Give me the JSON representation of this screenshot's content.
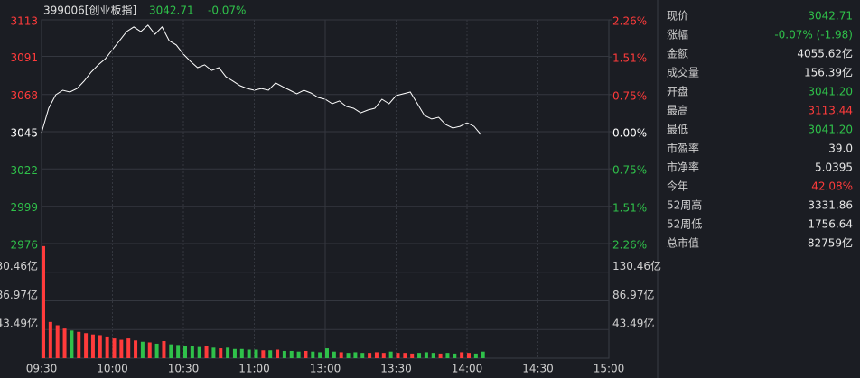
{
  "header": {
    "code": "399006[创业板指]",
    "price": "3042.71",
    "change": "-0.07%"
  },
  "chart_data": [
    {
      "type": "line",
      "color": "#ffffff",
      "xlim": [
        0,
        240
      ],
      "x": [
        0,
        3,
        6,
        9,
        12,
        15,
        18,
        21,
        24,
        27,
        30,
        33,
        36,
        39,
        42,
        45,
        48,
        51,
        54,
        57,
        60,
        63,
        66,
        69,
        72,
        75,
        78,
        81,
        84,
        87,
        90,
        93,
        96,
        99,
        102,
        105,
        108,
        111,
        114,
        117,
        120,
        123,
        126,
        129,
        132,
        135,
        138,
        141,
        144,
        147,
        150,
        153,
        156,
        159,
        162,
        165,
        168,
        171,
        174,
        177,
        180,
        183,
        186
      ],
      "values": [
        3044.1,
        3059.1,
        3067.4,
        3070.2,
        3069.1,
        3071.3,
        3075.8,
        3081.3,
        3085.8,
        3089.6,
        3095.2,
        3100.7,
        3106.3,
        3109.1,
        3106.3,
        3110.2,
        3104.6,
        3109.1,
        3100.7,
        3098.0,
        3092.4,
        3088.0,
        3084.1,
        3085.8,
        3082.4,
        3084.1,
        3078.5,
        3075.8,
        3073.0,
        3071.3,
        3070.2,
        3071.3,
        3070.2,
        3074.7,
        3072.4,
        3070.2,
        3068.0,
        3070.2,
        3068.5,
        3065.8,
        3064.7,
        3061.9,
        3063.6,
        3060.2,
        3059.1,
        3056.3,
        3058.0,
        3059.1,
        3064.7,
        3061.9,
        3066.9,
        3068.0,
        3069.1,
        3061.9,
        3054.7,
        3052.5,
        3053.6,
        3049.1,
        3046.9,
        3048.0,
        3050.2,
        3048.0,
        3042.7
      ],
      "ylim": [
        2975.9,
        3113.5
      ],
      "yticks": [
        {
          "value": 3113.5,
          "label": "3113"
        },
        {
          "value": 3091.0,
          "label": "3091"
        },
        {
          "value": 3067.6,
          "label": "3068"
        },
        {
          "value": 3044.69,
          "label": "3045"
        },
        {
          "value": 3021.8,
          "label": "3022"
        },
        {
          "value": 2998.8,
          "label": "2999"
        },
        {
          "value": 2975.9,
          "label": "2976"
        }
      ],
      "y2lim": [
        -2.26,
        2.26
      ],
      "y2ticks": [
        {
          "value": 2.26,
          "label": "2.26%"
        },
        {
          "value": 1.51,
          "label": "1.51%"
        },
        {
          "value": 0.75,
          "label": "0.75%"
        },
        {
          "value": 0,
          "label": "0.00%"
        },
        {
          "value": -0.75,
          "label": "0.75%"
        },
        {
          "value": -1.51,
          "label": "1.51%"
        },
        {
          "value": -2.26,
          "label": "2.26%"
        }
      ],
      "up_color": "#ff3b3b",
      "down_color": "#2fc14a",
      "flat_color": "#ffffff"
    },
    {
      "type": "bar",
      "up_color": "#ff3b3b",
      "down_color": "#2fc14a",
      "xlim": [
        0,
        240
      ],
      "x": [
        0,
        3,
        6,
        9,
        12,
        15,
        18,
        21,
        24,
        27,
        30,
        33,
        36,
        39,
        42,
        45,
        48,
        51,
        54,
        57,
        60,
        63,
        66,
        69,
        72,
        75,
        78,
        81,
        84,
        87,
        90,
        93,
        96,
        99,
        102,
        105,
        108,
        111,
        114,
        117,
        120,
        123,
        126,
        129,
        132,
        135,
        138,
        141,
        144,
        147,
        150,
        153,
        156,
        159,
        162,
        165,
        168,
        171,
        174,
        177,
        180,
        183,
        186
      ],
      "values": [
        170,
        55,
        50,
        45,
        42,
        40,
        38,
        36,
        35,
        33,
        30,
        28,
        30,
        27,
        25,
        24,
        22,
        26,
        21,
        20,
        19,
        18,
        17,
        18,
        16,
        15,
        16,
        14,
        14,
        13,
        13,
        12,
        12,
        13,
        11,
        11,
        10,
        11,
        10,
        9,
        15,
        10,
        9,
        8,
        9,
        8,
        8,
        9,
        8,
        10,
        8,
        8,
        7,
        8,
        9,
        8,
        7,
        8,
        7,
        9,
        8,
        7,
        10
      ],
      "ylim": [
        0,
        173.94
      ],
      "yticks": [
        {
          "value": 130.46,
          "label": "130.46亿"
        },
        {
          "value": 86.97,
          "label": "86.97亿"
        },
        {
          "value": 43.49,
          "label": "43.49亿"
        }
      ],
      "xticks": [
        {
          "value": 0,
          "label": "09:30"
        },
        {
          "value": 30,
          "label": "10:00"
        },
        {
          "value": 60,
          "label": "10:30"
        },
        {
          "value": 90,
          "label": "11:00"
        },
        {
          "value": 120,
          "label": "13:00"
        },
        {
          "value": 150,
          "label": "13:30"
        },
        {
          "value": 180,
          "label": "14:00"
        },
        {
          "value": 210,
          "label": "14:30"
        },
        {
          "value": 240,
          "label": "15:00"
        }
      ]
    }
  ],
  "quote": {
    "rows": [
      {
        "label": "现价",
        "value": "3042.71",
        "color": "#2fc14a"
      },
      {
        "label": "涨幅",
        "value": "-0.07% (-1.98)",
        "color": "#2fc14a"
      },
      {
        "label": "金额",
        "value": "4055.62亿",
        "color": "#e6e6e6"
      },
      {
        "label": "成交量",
        "value": "156.39亿",
        "color": "#e6e6e6"
      },
      {
        "label": "开盘",
        "value": "3041.20",
        "color": "#2fc14a"
      },
      {
        "label": "最高",
        "value": "3113.44",
        "color": "#ff3b3b"
      },
      {
        "label": "最低",
        "value": "3041.20",
        "color": "#2fc14a"
      },
      {
        "label": "市盈率",
        "value": "39.0",
        "color": "#e6e6e6"
      },
      {
        "label": "市净率",
        "value": "5.0395",
        "color": "#e6e6e6"
      },
      {
        "label": "今年",
        "value": "42.08%",
        "color": "#ff3b3b"
      },
      {
        "label": "52周高",
        "value": "3331.86",
        "color": "#e6e6e6"
      },
      {
        "label": "52周低",
        "value": "1756.64",
        "color": "#e6e6e6"
      },
      {
        "label": "总市值",
        "value": "82759亿",
        "color": "#e6e6e6"
      }
    ]
  }
}
